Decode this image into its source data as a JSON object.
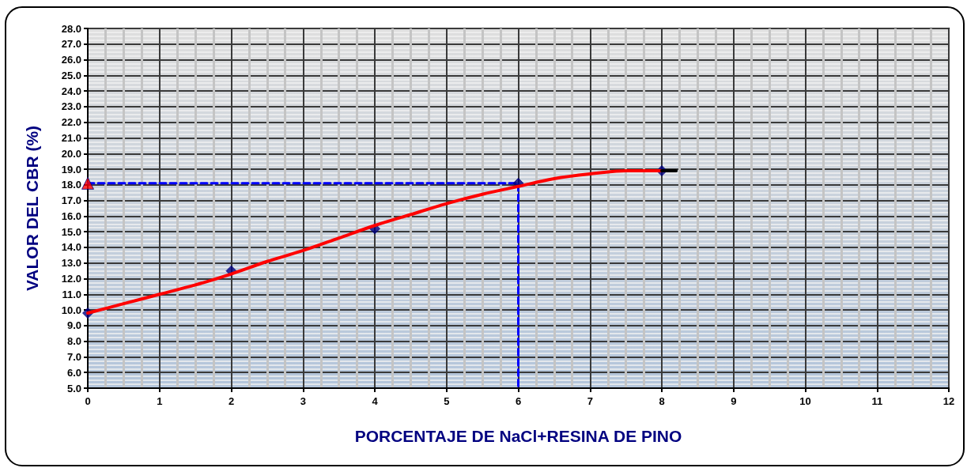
{
  "chart_data": {
    "type": "line",
    "xlabel": "PORCENTAJE DE NaCl+RESINA DE PINO",
    "ylabel": "VALOR DEL CBR (%)",
    "xlim": [
      0,
      12
    ],
    "xticks": [
      0,
      1,
      2,
      3,
      4,
      5,
      6,
      7,
      8,
      9,
      10,
      11,
      12
    ],
    "ylim": [
      5,
      28
    ],
    "yticks": [
      {
        "value": 5,
        "label": "5.0"
      },
      {
        "value": 6,
        "label": "6.0"
      },
      {
        "value": 7,
        "label": "7.0"
      },
      {
        "value": 8,
        "label": "8.0"
      },
      {
        "value": 9,
        "label": "9.0"
      },
      {
        "value": 10,
        "label": "10.0"
      },
      {
        "value": 11,
        "label": "11.0"
      },
      {
        "value": 12,
        "label": "12.0"
      },
      {
        "value": 13,
        "label": "13.0"
      },
      {
        "value": 14,
        "label": "14.0"
      },
      {
        "value": 15,
        "label": "15.0"
      },
      {
        "value": 16,
        "label": "16.0"
      },
      {
        "value": 17,
        "label": "17.0"
      },
      {
        "value": 18,
        "label": "18.0"
      },
      {
        "value": 19,
        "label": "19.0"
      },
      {
        "value": 20,
        "label": "20.0"
      },
      {
        "value": 21,
        "label": "21.0"
      },
      {
        "value": 22,
        "label": "22.0"
      },
      {
        "value": 23,
        "label": "23.0"
      },
      {
        "value": 24,
        "label": "24.0"
      },
      {
        "value": 25,
        "label": "25.0"
      },
      {
        "value": 26,
        "label": "26.0"
      },
      {
        "value": 27,
        "label": "27.0"
      },
      {
        "value": 28,
        "label": "28.0"
      }
    ],
    "grid": true,
    "series": [
      {
        "type": "scatter",
        "color": "#000080",
        "marker": "diamond",
        "x": [
          0,
          2,
          4,
          6,
          8
        ],
        "values": [
          9.8,
          12.5,
          15.2,
          18.1,
          18.9
        ]
      },
      {
        "color": "#ff0000",
        "marker": "none",
        "x": [
          0,
          0.5,
          1,
          1.5,
          2,
          2.5,
          3,
          3.5,
          4,
          4.5,
          5,
          5.5,
          6,
          6.5,
          7,
          7.5,
          8
        ],
        "values": [
          9.8,
          10.4,
          11.0,
          11.6,
          12.3,
          13.1,
          13.8,
          14.6,
          15.4,
          16.1,
          16.8,
          17.4,
          17.9,
          18.4,
          18.7,
          18.9,
          18.9
        ]
      },
      {
        "color": "#000000",
        "marker": "none",
        "x": [
          8,
          8.2
        ],
        "values": [
          18.9,
          18.9
        ]
      },
      {
        "color": "#0000ff",
        "marker": "none",
        "line_style": "dashed",
        "x": [
          0,
          6,
          6
        ],
        "values": [
          18.1,
          18.1,
          5
        ]
      },
      {
        "type": "scatter",
        "color": "#ff0000",
        "marker": "triangle",
        "x": [
          0
        ],
        "values": [
          18.1
        ]
      }
    ]
  }
}
